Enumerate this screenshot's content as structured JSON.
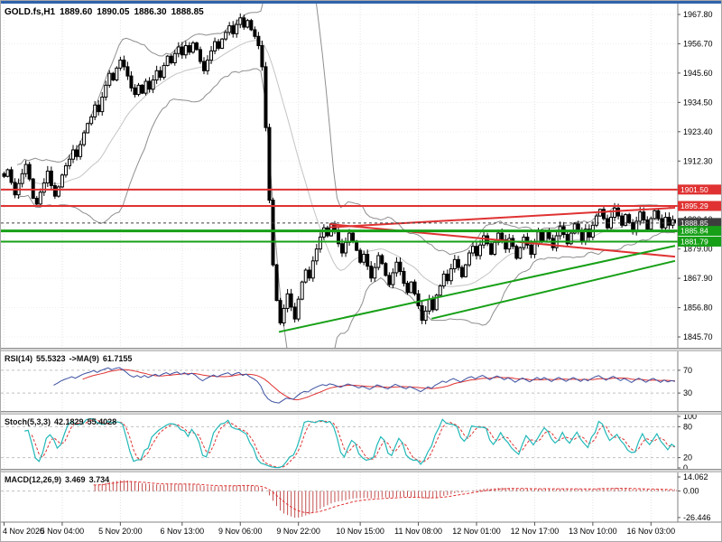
{
  "header": {
    "symbol": "GOLD.fs,H1",
    "open": "1889.60",
    "high": "1890.05",
    "low": "1886.30",
    "close": "1888.85"
  },
  "colors": {
    "background": "#ffffff",
    "candle_outline": "#000000",
    "bollinger": "#8f8f8f",
    "resistance_red": "#e03232",
    "support_green": "#17a017",
    "bid_tag": "#3d3d3d",
    "rsi_line": "#3c50a0",
    "rsi_ma_line": "#e03232",
    "stoch_k_line": "#22b8b8",
    "stoch_d_line": "#e03232",
    "macd_histogram": "#c34f4f",
    "macd_signal": "#e03232",
    "grid": "#e3e3e3",
    "window_accent": "#2e62ac"
  },
  "chart_data": {
    "type": "candlestick",
    "symbol": "GOLD.fs",
    "timeframe": "H1",
    "last_bar": {
      "open": 1889.6,
      "high": 1890.05,
      "low": 1886.3,
      "close": 1888.85
    },
    "price_axis": {
      "grid_labels": [
        "1967.80",
        "1956.70",
        "1945.60",
        "1934.50",
        "1923.40",
        "1912.30",
        "1901.20",
        "1890.10",
        "1879.00",
        "1867.90",
        "1856.80",
        "1845.70"
      ]
    },
    "time_labels": [
      {
        "text": "4 Nov 2020",
        "bar": 0
      },
      {
        "text": "5 Nov 04:00",
        "bar": 16
      },
      {
        "text": "5 Nov 20:00",
        "bar": 32
      },
      {
        "text": "6 Nov 13:00",
        "bar": 49
      },
      {
        "text": "9 Nov 06:00",
        "bar": 65
      },
      {
        "text": "9 Nov 22:00",
        "bar": 81
      },
      {
        "text": "10 Nov 15:00",
        "bar": 98
      },
      {
        "text": "11 Nov 08:00",
        "bar": 114
      },
      {
        "text": "12 Nov 01:00",
        "bar": 130
      },
      {
        "text": "12 Nov 17:00",
        "bar": 146
      },
      {
        "text": "13 Nov 10:00",
        "bar": 162
      },
      {
        "text": "16 Nov 03:00",
        "bar": 178
      }
    ],
    "closes": [
      1906.5,
      1909.0,
      1904.2,
      1899.5,
      1903.8,
      1907.5,
      1911.0,
      1905.5,
      1898.2,
      1896.0,
      1900.5,
      1904.0,
      1908.5,
      1903.0,
      1899.0,
      1902.5,
      1907.0,
      1910.5,
      1913.0,
      1916.5,
      1914.0,
      1918.5,
      1923.0,
      1926.5,
      1929.0,
      1933.5,
      1931.0,
      1936.5,
      1941.0,
      1945.5,
      1943.0,
      1947.5,
      1950.5,
      1948.0,
      1944.5,
      1940.0,
      1937.5,
      1941.0,
      1938.0,
      1942.5,
      1939.5,
      1943.0,
      1946.5,
      1944.0,
      1948.5,
      1952.0,
      1949.5,
      1953.0,
      1955.5,
      1952.5,
      1956.0,
      1953.5,
      1957.0,
      1954.5,
      1950.0,
      1946.5,
      1950.5,
      1954.0,
      1957.5,
      1955.0,
      1958.5,
      1961.0,
      1963.5,
      1960.5,
      1964.0,
      1966.5,
      1963.0,
      1965.5,
      1962.0,
      1959.5,
      1956.0,
      1948.0,
      1925.0,
      1897.5,
      1873.0,
      1859.5,
      1851.0,
      1856.5,
      1862.0,
      1857.0,
      1852.5,
      1860.0,
      1866.5,
      1871.0,
      1868.0,
      1874.5,
      1879.0,
      1883.5,
      1887.0,
      1884.0,
      1888.5,
      1885.5,
      1881.0,
      1877.5,
      1881.5,
      1885.0,
      1882.0,
      1878.5,
      1874.0,
      1877.0,
      1872.5,
      1868.0,
      1872.0,
      1876.5,
      1873.5,
      1869.0,
      1865.5,
      1870.0,
      1874.0,
      1870.5,
      1866.0,
      1862.5,
      1866.5,
      1862.0,
      1857.5,
      1852.0,
      1855.5,
      1860.0,
      1856.0,
      1861.5,
      1865.0,
      1869.5,
      1867.0,
      1871.5,
      1875.0,
      1872.0,
      1868.5,
      1873.0,
      1877.5,
      1880.0,
      1876.5,
      1880.5,
      1884.0,
      1881.0,
      1877.0,
      1881.5,
      1885.0,
      1882.5,
      1879.0,
      1883.0,
      1880.0,
      1875.5,
      1879.5,
      1883.5,
      1880.5,
      1877.0,
      1881.0,
      1885.5,
      1882.0,
      1886.0,
      1883.0,
      1879.5,
      1884.0,
      1887.5,
      1884.5,
      1881.0,
      1885.0,
      1888.5,
      1885.5,
      1882.0,
      1886.5,
      1883.5,
      1888.0,
      1891.5,
      1894.0,
      1890.5,
      1887.0,
      1891.0,
      1894.5,
      1891.5,
      1888.0,
      1892.0,
      1889.0,
      1885.5,
      1889.5,
      1893.0,
      1890.0,
      1886.5,
      1890.5,
      1893.5,
      1890.5,
      1887.0,
      1891.0,
      1888.0,
      1890.1,
      1888.85
    ],
    "bollinger": {
      "period": 20,
      "deviations": 2
    },
    "price_lines": [
      {
        "label": "1901.50",
        "price": 1901.5,
        "color": "#e03232",
        "style": "solid",
        "width": 2
      },
      {
        "label": "1895.29",
        "price": 1895.29,
        "color": "#e03232",
        "style": "solid",
        "width": 2
      },
      {
        "label": "1888.85",
        "price": 1888.85,
        "color": "#3d3d3d",
        "style": "dash",
        "width": 1
      },
      {
        "label": "1885.84",
        "price": 1885.84,
        "color": "#17a017",
        "style": "solid",
        "width": 3
      },
      {
        "label": "1881.79",
        "price": 1881.79,
        "color": "#17a017",
        "style": "solid",
        "width": 2
      }
    ],
    "trendlines": [
      {
        "bar1": 90,
        "price1": 1887.2,
        "bar2": 185,
        "price2": 1894.6,
        "color": "#e03232",
        "width": 2
      },
      {
        "bar1": 90,
        "price1": 1888.4,
        "bar2": 185,
        "price2": 1876.1,
        "color": "#e03232",
        "width": 2
      },
      {
        "bar1": 76,
        "price1": 1847.6,
        "bar2": 185,
        "price2": 1880.2,
        "color": "#17a017",
        "width": 2
      },
      {
        "bar1": 118,
        "price1": 1852.6,
        "bar2": 185,
        "price2": 1874.5,
        "color": "#17a017",
        "width": 2
      }
    ],
    "indicators": {
      "rsi": {
        "label": "RSI(14)",
        "value_text": "55.5323",
        "ma_label": "->MA(9)",
        "ma_value_text": "61.7155",
        "period": 14,
        "ma_period": 9,
        "levels": [
          70,
          30
        ],
        "range": [
          0,
          100
        ]
      },
      "stoch": {
        "label": "Stoch(5,3,3)",
        "k_text": "42.1829",
        "d_text": "55.4028",
        "k_period": 5,
        "d_period": 3,
        "slowing": 3,
        "levels": [
          100,
          80,
          20,
          0
        ],
        "range": [
          0,
          100
        ]
      },
      "macd": {
        "label": "MACD(12,26,9)",
        "value_text": "3.469",
        "signal_text": "3.734",
        "fast": 12,
        "slow": 26,
        "signal": 9,
        "axis_labels": [
          {
            "text": "14.062",
            "value": 14.062
          },
          {
            "text": "0.00",
            "value": 0
          },
          {
            "text": "-26.446",
            "value": -26.446
          }
        ]
      }
    }
  }
}
